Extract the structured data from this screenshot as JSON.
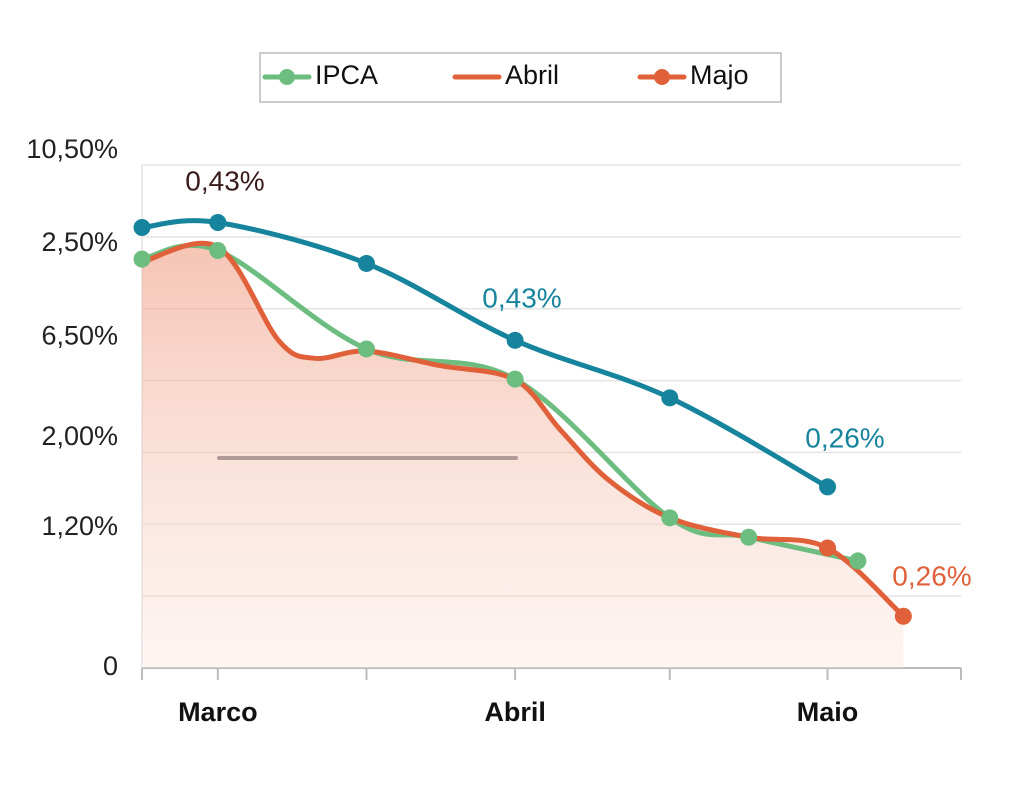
{
  "chart_data": {
    "type": "line",
    "xlim": [
      -0.25,
      2.45
    ],
    "ylim": [
      0,
      7
    ],
    "xticks": [
      {
        "value": 0,
        "label": "Marco"
      },
      {
        "value": 0.98,
        "label": "Abril"
      },
      {
        "value": 2.01,
        "label": "Maio"
      }
    ],
    "xminor": [
      -0.25,
      0.49,
      1.49,
      2.45
    ],
    "yticks": [
      {
        "value": 7.2,
        "label": "10,50%"
      },
      {
        "value": 5.9,
        "label": "2,50%"
      },
      {
        "value": 4.6,
        "label": "6,50%"
      },
      {
        "value": 3.2,
        "label": "2,00%"
      },
      {
        "value": 1.95,
        "label": "1,20%"
      },
      0
    ],
    "grid_lines": [
      1,
      2,
      3,
      4,
      5,
      6,
      7
    ],
    "annotations": [
      "0,43%",
      "0,43%",
      "0,26%",
      "0,26%"
    ],
    "series": [
      {
        "color": "#17849e",
        "markers": true,
        "x": [
          -0.25,
          0,
          0.49,
          0.98,
          1.49,
          2.01
        ],
        "values": [
          6.13,
          6.2,
          5.63,
          4.56,
          3.76,
          2.52
        ]
      },
      {
        "name": "IPCA",
        "color": "#6cbd7f",
        "markers": true,
        "x": [
          -0.25,
          0,
          0.49,
          0.98,
          1.49,
          1.75,
          2.11
        ],
        "values": [
          5.69,
          5.81,
          4.44,
          4.02,
          2.09,
          1.82,
          1.49
        ]
      },
      {
        "name": "Abril",
        "color": "#e0603a",
        "markers": false,
        "area": true,
        "x": [
          -0.25,
          0,
          0.2,
          0.32,
          0.49,
          0.73,
          0.98,
          1.13,
          1.29,
          1.49,
          1.75,
          2.01,
          2.26
        ],
        "values": [
          5.65,
          5.86,
          4.56,
          4.31,
          4.41,
          4.21,
          4.01,
          3.31,
          2.61,
          2.09,
          1.82,
          1.67,
          0.72
        ]
      },
      {
        "name": "Majo",
        "color": "#e0603a",
        "markers": true,
        "line": false,
        "x": [
          2.01,
          2.26
        ],
        "values": [
          1.67,
          0.72
        ]
      }
    ]
  }
}
